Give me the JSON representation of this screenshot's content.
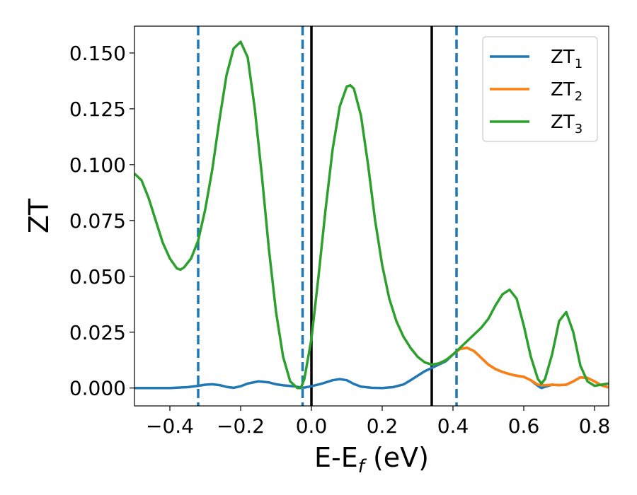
{
  "chart_data": {
    "type": "line",
    "xlabel": "E-E",
    "xlabel_subscript": "f",
    "xlabel_unit": " (eV)",
    "ylabel": "ZT",
    "xlim": [
      -0.5,
      0.84
    ],
    "ylim": [
      -0.008,
      0.162
    ],
    "grid": false,
    "legend_position": "top-right",
    "x_ticks": [
      -0.4,
      -0.2,
      0.0,
      0.2,
      0.4,
      0.6,
      0.8
    ],
    "x_tick_labels": [
      "−0.4",
      "−0.2",
      "0.0",
      "0.2",
      "0.4",
      "0.6",
      "0.8"
    ],
    "y_ticks": [
      0.0,
      0.025,
      0.05,
      0.075,
      0.1,
      0.125,
      0.15
    ],
    "y_tick_labels": [
      "0.000",
      "0.025",
      "0.050",
      "0.075",
      "0.100",
      "0.125",
      "0.150"
    ],
    "vlines_solid": [
      0.0,
      0.34
    ],
    "vlines_dashed": [
      -0.32,
      -0.025,
      0.41
    ],
    "series": [
      {
        "name": "ZT",
        "subscript": "1",
        "color": "#1f77b4",
        "points": [
          [
            -0.5,
            0.0
          ],
          [
            -0.45,
            0.0
          ],
          [
            -0.4,
            0.0
          ],
          [
            -0.35,
            0.0004
          ],
          [
            -0.32,
            0.001
          ],
          [
            -0.3,
            0.0015
          ],
          [
            -0.28,
            0.0017
          ],
          [
            -0.26,
            0.0013
          ],
          [
            -0.24,
            0.0005
          ],
          [
            -0.22,
            0.0001
          ],
          [
            -0.2,
            0.0008
          ],
          [
            -0.18,
            0.002
          ],
          [
            -0.15,
            0.003
          ],
          [
            -0.12,
            0.0025
          ],
          [
            -0.1,
            0.0017
          ],
          [
            -0.08,
            0.0012
          ],
          [
            -0.05,
            0.0008
          ],
          [
            -0.03,
            0.0003
          ],
          [
            -0.02,
            0.0002
          ],
          [
            0.0,
            0.0008
          ],
          [
            0.03,
            0.002
          ],
          [
            0.06,
            0.0035
          ],
          [
            0.08,
            0.004
          ],
          [
            0.1,
            0.0035
          ],
          [
            0.12,
            0.0018
          ],
          [
            0.14,
            0.0006
          ],
          [
            0.17,
            0.0001
          ],
          [
            0.2,
            0.0
          ],
          [
            0.23,
            0.0004
          ],
          [
            0.26,
            0.0016
          ],
          [
            0.28,
            0.0035
          ],
          [
            0.3,
            0.0055
          ],
          [
            0.32,
            0.0075
          ],
          [
            0.34,
            0.009
          ],
          [
            0.36,
            0.0105
          ],
          [
            0.38,
            0.012
          ],
          [
            0.4,
            0.015
          ],
          [
            0.42,
            0.0175
          ],
          [
            0.44,
            0.018
          ],
          [
            0.46,
            0.0165
          ],
          [
            0.48,
            0.0135
          ],
          [
            0.5,
            0.0105
          ],
          [
            0.52,
            0.0085
          ],
          [
            0.54,
            0.0072
          ],
          [
            0.56,
            0.0062
          ],
          [
            0.58,
            0.0055
          ],
          [
            0.6,
            0.005
          ],
          [
            0.62,
            0.0035
          ],
          [
            0.64,
            0.001
          ],
          [
            0.65,
            0.0
          ],
          [
            0.66,
            0.0005
          ],
          [
            0.68,
            0.0015
          ],
          [
            0.7,
            0.0013
          ],
          [
            0.72,
            0.0015
          ],
          [
            0.74,
            0.003
          ],
          [
            0.76,
            0.0048
          ],
          [
            0.78,
            0.0045
          ],
          [
            0.8,
            0.003
          ],
          [
            0.82,
            0.0012
          ],
          [
            0.84,
            0.0003
          ]
        ]
      },
      {
        "name": "ZT",
        "subscript": "2",
        "color": "#ff7f0e",
        "points": [
          [
            0.34,
            0.0105
          ],
          [
            0.36,
            0.011
          ],
          [
            0.38,
            0.0125
          ],
          [
            0.4,
            0.015
          ],
          [
            0.42,
            0.0175
          ],
          [
            0.44,
            0.018
          ],
          [
            0.46,
            0.0165
          ],
          [
            0.48,
            0.0135
          ],
          [
            0.5,
            0.0105
          ],
          [
            0.52,
            0.0085
          ],
          [
            0.54,
            0.0072
          ],
          [
            0.56,
            0.0062
          ],
          [
            0.58,
            0.0055
          ],
          [
            0.6,
            0.005
          ],
          [
            0.62,
            0.0035
          ],
          [
            0.64,
            0.0015
          ],
          [
            0.66,
            0.0012
          ],
          [
            0.68,
            0.0015
          ],
          [
            0.7,
            0.0013
          ],
          [
            0.72,
            0.0015
          ],
          [
            0.74,
            0.003
          ],
          [
            0.76,
            0.0048
          ],
          [
            0.78,
            0.0045
          ],
          [
            0.8,
            0.003
          ],
          [
            0.82,
            0.0012
          ],
          [
            0.84,
            0.0003
          ]
        ]
      },
      {
        "name": "ZT",
        "subscript": "3",
        "color": "#2ca02c",
        "points": [
          [
            -0.5,
            0.096
          ],
          [
            -0.48,
            0.093
          ],
          [
            -0.46,
            0.085
          ],
          [
            -0.44,
            0.075
          ],
          [
            -0.42,
            0.065
          ],
          [
            -0.4,
            0.058
          ],
          [
            -0.38,
            0.0535
          ],
          [
            -0.37,
            0.053
          ],
          [
            -0.36,
            0.054
          ],
          [
            -0.34,
            0.058
          ],
          [
            -0.32,
            0.066
          ],
          [
            -0.3,
            0.08
          ],
          [
            -0.28,
            0.098
          ],
          [
            -0.26,
            0.12
          ],
          [
            -0.24,
            0.14
          ],
          [
            -0.22,
            0.152
          ],
          [
            -0.2,
            0.155
          ],
          [
            -0.18,
            0.148
          ],
          [
            -0.16,
            0.125
          ],
          [
            -0.14,
            0.095
          ],
          [
            -0.12,
            0.062
          ],
          [
            -0.1,
            0.034
          ],
          [
            -0.08,
            0.014
          ],
          [
            -0.06,
            0.003
          ],
          [
            -0.04,
            0.0
          ],
          [
            -0.03,
            0.0
          ],
          [
            -0.02,
            0.004
          ],
          [
            0.0,
            0.022
          ],
          [
            0.02,
            0.05
          ],
          [
            0.04,
            0.08
          ],
          [
            0.06,
            0.107
          ],
          [
            0.08,
            0.126
          ],
          [
            0.1,
            0.135
          ],
          [
            0.11,
            0.1355
          ],
          [
            0.12,
            0.134
          ],
          [
            0.14,
            0.122
          ],
          [
            0.16,
            0.1
          ],
          [
            0.18,
            0.075
          ],
          [
            0.2,
            0.055
          ],
          [
            0.22,
            0.04
          ],
          [
            0.24,
            0.03
          ],
          [
            0.26,
            0.023
          ],
          [
            0.28,
            0.018
          ],
          [
            0.3,
            0.014
          ],
          [
            0.32,
            0.0115
          ],
          [
            0.34,
            0.0105
          ],
          [
            0.36,
            0.011
          ],
          [
            0.38,
            0.0125
          ],
          [
            0.4,
            0.015
          ],
          [
            0.42,
            0.018
          ],
          [
            0.44,
            0.021
          ],
          [
            0.46,
            0.024
          ],
          [
            0.48,
            0.027
          ],
          [
            0.5,
            0.031
          ],
          [
            0.52,
            0.037
          ],
          [
            0.54,
            0.042
          ],
          [
            0.56,
            0.044
          ],
          [
            0.58,
            0.04
          ],
          [
            0.6,
            0.028
          ],
          [
            0.62,
            0.014
          ],
          [
            0.64,
            0.004
          ],
          [
            0.65,
            0.002
          ],
          [
            0.66,
            0.004
          ],
          [
            0.68,
            0.015
          ],
          [
            0.7,
            0.03
          ],
          [
            0.72,
            0.034
          ],
          [
            0.74,
            0.025
          ],
          [
            0.76,
            0.01
          ],
          [
            0.78,
            0.003
          ],
          [
            0.8,
            0.001
          ],
          [
            0.82,
            0.0015
          ],
          [
            0.84,
            0.002
          ]
        ]
      }
    ]
  }
}
